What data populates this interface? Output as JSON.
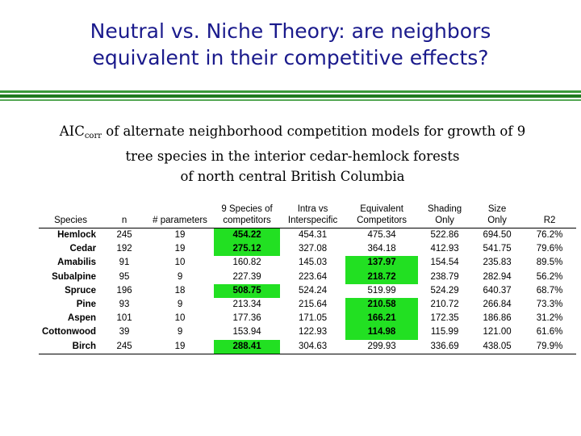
{
  "title": {
    "line1": "Neutral vs. Niche Theory:  are neighbors",
    "line2": "equivalent in their competitive effects?"
  },
  "caption": {
    "aic": "AIC",
    "sub": "corr",
    "line1_rest": " of alternate neighborhood competition models for growth of 9",
    "line2": "tree species in the interior cedar-hemlock forests",
    "line3": "of north central British Columbia"
  },
  "table": {
    "headers": {
      "species": "Species",
      "n": "n",
      "params": "# parameters",
      "nine_a": "9 Species of",
      "nine_b": "competitors",
      "intra_a": "Intra vs",
      "intra_b": "Interspecific",
      "equiv_a": "Equivalent",
      "equiv_b": "Competitors",
      "shade_a": "Shading",
      "shade_b": "Only",
      "size_a": "Size",
      "size_b": "Only",
      "r2": "R2"
    },
    "highlight_color": "#22e022",
    "rows": [
      {
        "species": "Hemlock",
        "n": "245",
        "params": "19",
        "nine": "454.22",
        "intra": "454.31",
        "equiv": "475.34",
        "shade": "522.86",
        "size": "694.50",
        "r2": "76.2%",
        "best": "nine"
      },
      {
        "species": "Cedar",
        "n": "192",
        "params": "19",
        "nine": "275.12",
        "intra": "327.08",
        "equiv": "364.18",
        "shade": "412.93",
        "size": "541.75",
        "r2": "79.6%",
        "best": "nine"
      },
      {
        "species": "Amabilis",
        "n": "91",
        "params": "10",
        "nine": "160.82",
        "intra": "145.03",
        "equiv": "137.97",
        "shade": "154.54",
        "size": "235.83",
        "r2": "89.5%",
        "best": "equiv"
      },
      {
        "species": "Subalpine",
        "n": "95",
        "params": "9",
        "nine": "227.39",
        "intra": "223.64",
        "equiv": "218.72",
        "shade": "238.79",
        "size": "282.94",
        "r2": "56.2%",
        "best": "equiv"
      },
      {
        "species": "Spruce",
        "n": "196",
        "params": "18",
        "nine": "508.75",
        "intra": "524.24",
        "equiv": "519.99",
        "shade": "524.29",
        "size": "640.37",
        "r2": "68.7%",
        "best": "nine"
      },
      {
        "species": "Pine",
        "n": "93",
        "params": "9",
        "nine": "213.34",
        "intra": "215.64",
        "equiv": "210.58",
        "shade": "210.72",
        "size": "266.84",
        "r2": "73.3%",
        "best": "equiv"
      },
      {
        "species": "Aspen",
        "n": "101",
        "params": "10",
        "nine": "177.36",
        "intra": "171.05",
        "equiv": "166.21",
        "shade": "172.35",
        "size": "186.86",
        "r2": "31.2%",
        "best": "equiv"
      },
      {
        "species": "Cottonwood",
        "n": "39",
        "params": "9",
        "nine": "153.94",
        "intra": "122.93",
        "equiv": "114.98",
        "shade": "115.99",
        "size": "121.00",
        "r2": "61.6%",
        "best": "equiv"
      },
      {
        "species": "Birch",
        "n": "245",
        "params": "19",
        "nine": "288.41",
        "intra": "304.63",
        "equiv": "299.93",
        "shade": "336.69",
        "size": "438.05",
        "r2": "79.9%",
        "best": "nine"
      }
    ]
  }
}
